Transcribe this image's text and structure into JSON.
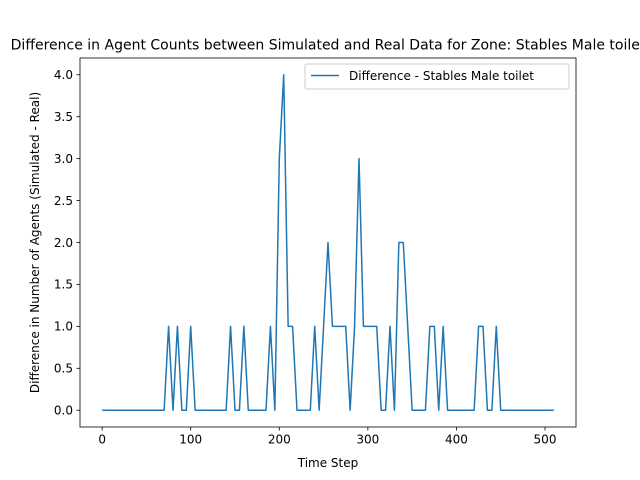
{
  "chart_data": {
    "type": "line",
    "title": "Difference in Agent Counts between Simulated and Real Data for Zone: Stables Male toilet",
    "xlabel": "Time Step",
    "ylabel": "Difference in Number of Agents (Simulated - Real)",
    "xlim": [
      -25,
      535
    ],
    "ylim": [
      -0.2,
      4.2
    ],
    "xticks": [
      0,
      100,
      200,
      300,
      400,
      500
    ],
    "xtick_labels": [
      "0",
      "100",
      "200",
      "300",
      "400",
      "500"
    ],
    "yticks": [
      0.0,
      0.5,
      1.0,
      1.5,
      2.0,
      2.5,
      3.0,
      3.5,
      4.0
    ],
    "ytick_labels": [
      "0.0",
      "0.5",
      "1.0",
      "1.5",
      "2.0",
      "2.5",
      "3.0",
      "3.5",
      "4.0"
    ],
    "grid": false,
    "legend_placement": "top-right",
    "series": [
      {
        "name": "Difference - Stables Male toilet",
        "color": "#1f77b4",
        "x": [
          0,
          5,
          10,
          15,
          20,
          25,
          30,
          35,
          40,
          45,
          50,
          55,
          60,
          65,
          70,
          75,
          80,
          85,
          90,
          95,
          100,
          105,
          110,
          115,
          120,
          125,
          130,
          135,
          140,
          145,
          150,
          155,
          160,
          165,
          170,
          175,
          180,
          185,
          190,
          195,
          200,
          205,
          210,
          215,
          220,
          225,
          230,
          235,
          240,
          245,
          250,
          255,
          260,
          265,
          270,
          275,
          280,
          285,
          290,
          295,
          300,
          305,
          310,
          315,
          320,
          325,
          330,
          335,
          340,
          345,
          350,
          355,
          360,
          365,
          370,
          375,
          380,
          385,
          390,
          395,
          400,
          405,
          410,
          415,
          420,
          425,
          430,
          435,
          440,
          445,
          450,
          455,
          460,
          465,
          470,
          475,
          480,
          485,
          490,
          495,
          500,
          505,
          510
        ],
        "y": [
          0,
          0,
          0,
          0,
          0,
          0,
          0,
          0,
          0,
          0,
          0,
          0,
          0,
          0,
          0,
          1,
          0,
          1,
          0,
          0,
          1,
          0,
          0,
          0,
          0,
          0,
          0,
          0,
          0,
          1,
          0,
          0,
          1,
          0,
          0,
          0,
          0,
          0,
          1,
          0,
          3,
          4,
          1,
          1,
          0,
          0,
          0,
          0,
          1,
          0,
          1,
          2,
          1,
          1,
          1,
          1,
          0,
          1,
          3,
          1,
          1,
          1,
          1,
          0,
          0,
          1,
          0,
          2,
          2,
          1,
          0,
          0,
          0,
          0,
          1,
          1,
          0,
          1,
          0,
          0,
          0,
          0,
          0,
          0,
          0,
          1,
          1,
          0,
          0,
          1,
          0,
          0,
          0,
          0,
          0,
          0,
          0,
          0,
          0,
          0,
          0,
          0,
          0
        ]
      }
    ]
  }
}
